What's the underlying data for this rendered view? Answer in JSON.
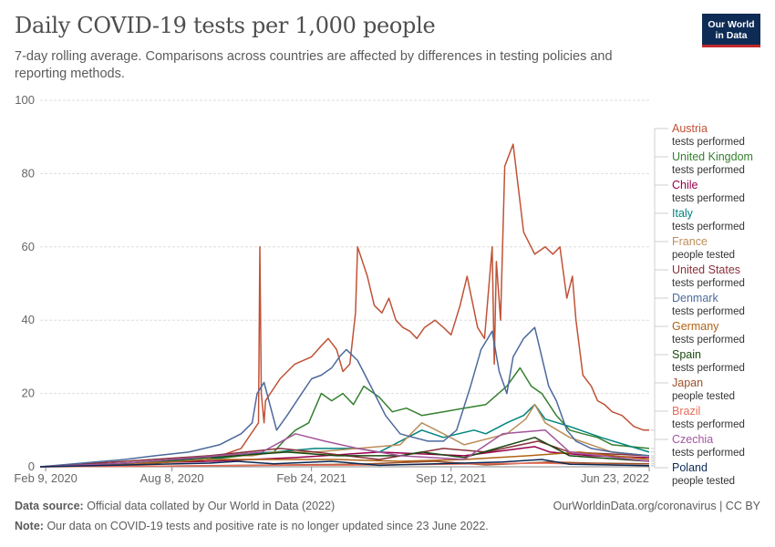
{
  "header": {
    "title": "Daily COVID-19 tests per 1,000 people",
    "subtitle": "7-day rolling average. Comparisons across countries are affected by differences in testing policies and reporting methods.",
    "logo_line1": "Our World",
    "logo_line2": "in Data"
  },
  "footer": {
    "source_label": "Data source:",
    "source_text": "Official data collated by Our World in Data (2022)",
    "link_text": "OurWorldinData.org/coronavirus | CC BY",
    "note_label": "Note:",
    "note_text": "Our data on COVID-19 tests and positive rate is no longer updated since 23 June 2022."
  },
  "chart_data": {
    "type": "line",
    "title": "Daily COVID-19 tests per 1,000 people",
    "xlabel": "",
    "ylabel": "",
    "ylim": [
      0,
      100
    ],
    "yticks": [
      0,
      20,
      40,
      60,
      80,
      100
    ],
    "xlim": [
      "2020-02-01",
      "2022-06-23"
    ],
    "xticks": [
      {
        "date": "2020-02-09",
        "label": "Feb 9, 2020"
      },
      {
        "date": "2020-08-08",
        "label": "Aug 8, 2020"
      },
      {
        "date": "2021-02-24",
        "label": "Feb 24, 2021"
      },
      {
        "date": "2021-09-12",
        "label": "Sep 12, 2021"
      },
      {
        "date": "2022-06-23",
        "label": "Jun 23, 2022"
      }
    ],
    "grid": true,
    "series": [
      {
        "name": "Austria",
        "metric": "tests performed",
        "color": "#c05236",
        "x": [
          "2020-02-01",
          "2020-04-01",
          "2020-07-01",
          "2020-10-01",
          "2020-11-15",
          "2020-12-10",
          "2020-12-12",
          "2020-12-14",
          "2020-12-18",
          "2020-12-20",
          "2021-01-10",
          "2021-01-31",
          "2021-02-24",
          "2021-03-10",
          "2021-03-20",
          "2021-04-01",
          "2021-04-10",
          "2021-04-20",
          "2021-04-28",
          "2021-05-01",
          "2021-05-15",
          "2021-05-25",
          "2021-06-05",
          "2021-06-15",
          "2021-06-25",
          "2021-07-05",
          "2021-07-15",
          "2021-07-25",
          "2021-08-05",
          "2021-08-20",
          "2021-09-01",
          "2021-09-12",
          "2021-09-25",
          "2021-10-05",
          "2021-10-20",
          "2021-10-30",
          "2021-11-10",
          "2021-11-13",
          "2021-11-16",
          "2021-11-22",
          "2021-11-28",
          "2021-12-10",
          "2021-12-25",
          "2022-01-10",
          "2022-01-25",
          "2022-02-05",
          "2022-02-15",
          "2022-02-25",
          "2022-03-05",
          "2022-03-10",
          "2022-03-20",
          "2022-04-01",
          "2022-04-10",
          "2022-04-20",
          "2022-05-01",
          "2022-05-15",
          "2022-06-01",
          "2022-06-15",
          "2022-06-23"
        ],
        "values": [
          0,
          0.5,
          1,
          2,
          5,
          12,
          60,
          20,
          12,
          18,
          24,
          28,
          30,
          33,
          35,
          32,
          26,
          28,
          42,
          60,
          52,
          44,
          42,
          46,
          40,
          38,
          37,
          35,
          38,
          40,
          38,
          36,
          44,
          52,
          38,
          35,
          60,
          28,
          56,
          40,
          82,
          88,
          64,
          58,
          60,
          58,
          60,
          46,
          52,
          40,
          25,
          22,
          18,
          17,
          15,
          14,
          11,
          10,
          10
        ]
      },
      {
        "name": "United Kingdom",
        "metric": "tests performed",
        "color": "#35802f",
        "x": [
          "2020-02-01",
          "2020-06-01",
          "2020-10-01",
          "2021-01-01",
          "2021-01-15",
          "2021-02-01",
          "2021-02-20",
          "2021-03-10",
          "2021-03-25",
          "2021-04-10",
          "2021-04-25",
          "2021-05-10",
          "2021-06-01",
          "2021-06-20",
          "2021-07-10",
          "2021-08-01",
          "2021-09-01",
          "2021-10-01",
          "2021-11-01",
          "2021-12-01",
          "2021-12-20",
          "2022-01-05",
          "2022-01-20",
          "2022-02-10",
          "2022-03-01",
          "2022-03-20",
          "2022-04-10",
          "2022-05-01",
          "2022-06-23"
        ],
        "values": [
          0,
          0.5,
          2,
          4,
          7,
          10,
          12,
          20,
          18,
          20,
          17,
          22,
          19,
          15,
          16,
          14,
          15,
          16,
          17,
          22,
          27,
          22,
          20,
          14,
          10,
          9,
          8,
          6,
          5
        ]
      },
      {
        "name": "Chile",
        "metric": "tests performed",
        "color": "#97004b",
        "x": [
          "2020-02-01",
          "2020-06-01",
          "2020-10-01",
          "2021-02-01",
          "2021-06-01",
          "2021-10-01",
          "2022-01-10",
          "2022-02-01",
          "2022-04-01",
          "2022-06-23"
        ],
        "values": [
          0,
          1,
          1.5,
          2.5,
          4,
          3,
          5.5,
          4,
          3,
          2.5
        ]
      },
      {
        "name": "Italy",
        "metric": "tests performed",
        "color": "#00847e",
        "x": [
          "2020-02-01",
          "2020-06-01",
          "2020-10-01",
          "2020-11-15",
          "2021-01-01",
          "2021-03-01",
          "2021-05-01",
          "2021-06-01",
          "2021-08-01",
          "2021-09-01",
          "2021-10-15",
          "2021-11-01",
          "2021-12-01",
          "2021-12-25",
          "2022-01-10",
          "2022-01-25",
          "2022-03-01",
          "2022-04-15",
          "2022-06-23"
        ],
        "values": [
          0,
          1,
          2,
          3.5,
          4,
          5,
          5,
          4,
          10,
          8,
          10,
          9,
          12,
          14,
          17,
          13,
          11,
          8,
          4
        ]
      },
      {
        "name": "France",
        "metric": "people tested",
        "color": "#bc8e5a",
        "x": [
          "2020-02-01",
          "2020-06-01",
          "2020-10-01",
          "2020-12-01",
          "2021-01-01",
          "2021-03-01",
          "2021-05-01",
          "2021-07-01",
          "2021-08-01",
          "2021-09-01",
          "2021-10-01",
          "2021-12-01",
          "2021-12-28",
          "2022-01-10",
          "2022-01-25",
          "2022-03-01",
          "2022-05-01",
          "2022-06-23"
        ],
        "values": [
          0,
          0.5,
          3,
          3,
          4,
          4,
          5,
          6,
          12,
          9,
          6,
          9,
          13,
          17,
          12,
          8,
          4,
          3
        ]
      },
      {
        "name": "United States",
        "metric": "tests performed",
        "color": "#883039",
        "x": [
          "2020-02-01",
          "2020-06-01",
          "2020-10-01",
          "2021-01-10",
          "2021-03-01",
          "2021-06-01",
          "2021-09-01",
          "2021-11-01",
          "2022-01-15",
          "2022-03-01",
          "2022-06-23"
        ],
        "values": [
          0,
          1.5,
          3,
          5,
          4,
          2,
          5,
          4,
          7,
          4,
          3
        ]
      },
      {
        "name": "Denmark",
        "metric": "tests performed",
        "color": "#4c6a9c",
        "x": [
          "2020-02-01",
          "2020-04-01",
          "2020-06-01",
          "2020-07-15",
          "2020-09-01",
          "2020-10-15",
          "2020-11-15",
          "2020-12-01",
          "2020-12-08",
          "2020-12-18",
          "2021-01-05",
          "2021-01-20",
          "2021-02-10",
          "2021-02-24",
          "2021-03-10",
          "2021-03-25",
          "2021-04-05",
          "2021-04-15",
          "2021-05-01",
          "2021-05-20",
          "2021-06-10",
          "2021-07-01",
          "2021-07-20",
          "2021-08-10",
          "2021-09-01",
          "2021-09-20",
          "2021-10-10",
          "2021-10-25",
          "2021-11-10",
          "2021-11-20",
          "2021-12-01",
          "2021-12-10",
          "2021-12-25",
          "2022-01-10",
          "2022-01-20",
          "2022-01-30",
          "2022-02-10",
          "2022-02-25",
          "2022-03-10",
          "2022-04-01",
          "2022-05-01",
          "2022-06-23"
        ],
        "values": [
          0,
          1,
          2,
          3,
          4,
          6,
          9,
          12,
          20,
          23,
          10,
          14,
          20,
          24,
          25,
          27,
          30,
          32,
          29,
          22,
          14,
          9,
          8,
          7,
          7,
          10,
          22,
          32,
          37,
          26,
          20,
          30,
          35,
          38,
          30,
          22,
          18,
          10,
          7,
          5,
          4,
          3
        ]
      },
      {
        "name": "Germany",
        "metric": "tests performed",
        "color": "#b16214",
        "x": [
          "2020-02-01",
          "2020-06-01",
          "2020-10-01",
          "2021-01-01",
          "2021-04-01",
          "2021-07-01",
          "2021-10-01",
          "2022-01-01",
          "2022-03-15",
          "2022-06-23"
        ],
        "values": [
          0,
          0.5,
          2,
          2,
          2,
          1.5,
          2,
          3,
          4,
          2
        ]
      },
      {
        "name": "Spain",
        "metric": "tests performed",
        "color": "#18470f",
        "x": [
          "2020-02-01",
          "2020-06-01",
          "2020-10-01",
          "2021-01-20",
          "2021-04-01",
          "2021-07-01",
          "2021-08-01",
          "2021-10-01",
          "2022-01-10",
          "2022-03-01",
          "2022-06-23"
        ],
        "values": [
          0,
          1,
          2.5,
          4,
          3,
          3,
          4,
          2.5,
          8,
          3,
          1.5
        ]
      },
      {
        "name": "Japan",
        "metric": "people tested",
        "color": "#9a5129",
        "x": [
          "2020-02-01",
          "2020-08-01",
          "2021-01-15",
          "2021-05-01",
          "2021-08-20",
          "2021-11-01",
          "2022-02-01",
          "2022-04-01",
          "2022-06-23"
        ],
        "values": [
          0,
          0.2,
          0.5,
          0.7,
          1.5,
          0.5,
          1.3,
          1,
          0.8
        ]
      },
      {
        "name": "Brazil",
        "metric": "tests performed",
        "color": "#e56e5a",
        "x": [
          "2020-02-01",
          "2020-08-01",
          "2021-01-01",
          "2021-06-01",
          "2022-01-20",
          "2022-06-23"
        ],
        "values": [
          0,
          0.2,
          0.4,
          0.5,
          1,
          0.3
        ]
      },
      {
        "name": "Czechia",
        "metric": "tests performed",
        "color": "#a2559c",
        "x": [
          "2020-02-01",
          "2020-06-01",
          "2020-10-15",
          "2020-12-15",
          "2021-02-01",
          "2021-03-15",
          "2021-05-01",
          "2021-07-01",
          "2021-10-01",
          "2021-11-25",
          "2022-01-25",
          "2022-03-01",
          "2022-06-23"
        ],
        "values": [
          0,
          1,
          3,
          4,
          9,
          7,
          5,
          3,
          2,
          9,
          10,
          4,
          1.5
        ]
      },
      {
        "name": "Poland",
        "metric": "people tested",
        "color": "#0a2a55",
        "x": [
          "2020-02-01",
          "2020-10-01",
          "2020-11-10",
          "2021-01-01",
          "2021-03-25",
          "2021-06-01",
          "2021-11-25",
          "2022-01-20",
          "2022-03-01",
          "2022-06-23"
        ],
        "values": [
          0,
          1,
          1.5,
          0.8,
          1.5,
          0.4,
          1.3,
          2,
          0.7,
          0.3
        ]
      }
    ]
  }
}
